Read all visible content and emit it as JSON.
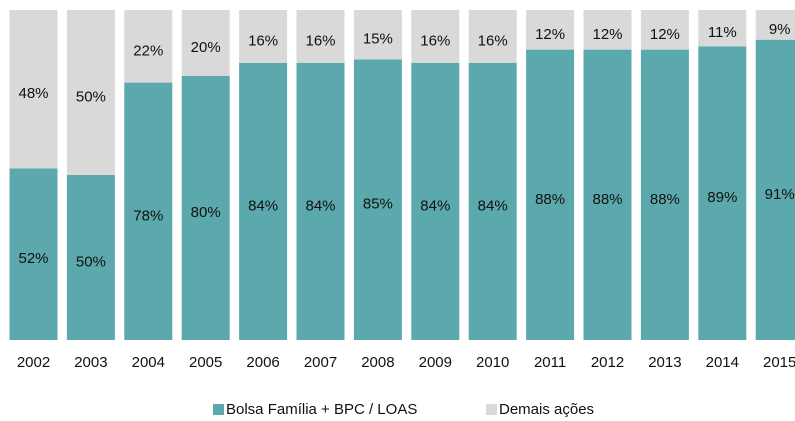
{
  "chart_data": {
    "type": "stacked-bar",
    "categories": [
      "2002",
      "2003",
      "2004",
      "2005",
      "2006",
      "2007",
      "2008",
      "2009",
      "2010",
      "2011",
      "2012",
      "2013",
      "2014",
      "2015"
    ],
    "series": [
      {
        "name": "Bolsa Família + BPC / LOAS",
        "color": "#5ba9ad",
        "values": [
          52,
          50,
          78,
          80,
          84,
          84,
          85,
          84,
          84,
          88,
          88,
          88,
          89,
          91
        ],
        "value_labels": [
          "52%",
          "50%",
          "78%",
          "80%",
          "84%",
          "84%",
          "85%",
          "84%",
          "84%",
          "88%",
          "88%",
          "88%",
          "89%",
          "91%"
        ]
      },
      {
        "name": "Demais ações",
        "color": "#d9d9d9",
        "values": [
          48,
          50,
          22,
          20,
          16,
          16,
          15,
          16,
          16,
          12,
          12,
          12,
          11,
          9
        ],
        "value_labels": [
          "48%",
          "50%",
          "22%",
          "20%",
          "16%",
          "16%",
          "15%",
          "16%",
          "16%",
          "12%",
          "12%",
          "12%",
          "11%",
          "9%"
        ]
      }
    ],
    "ylim": [
      0,
      100
    ]
  }
}
